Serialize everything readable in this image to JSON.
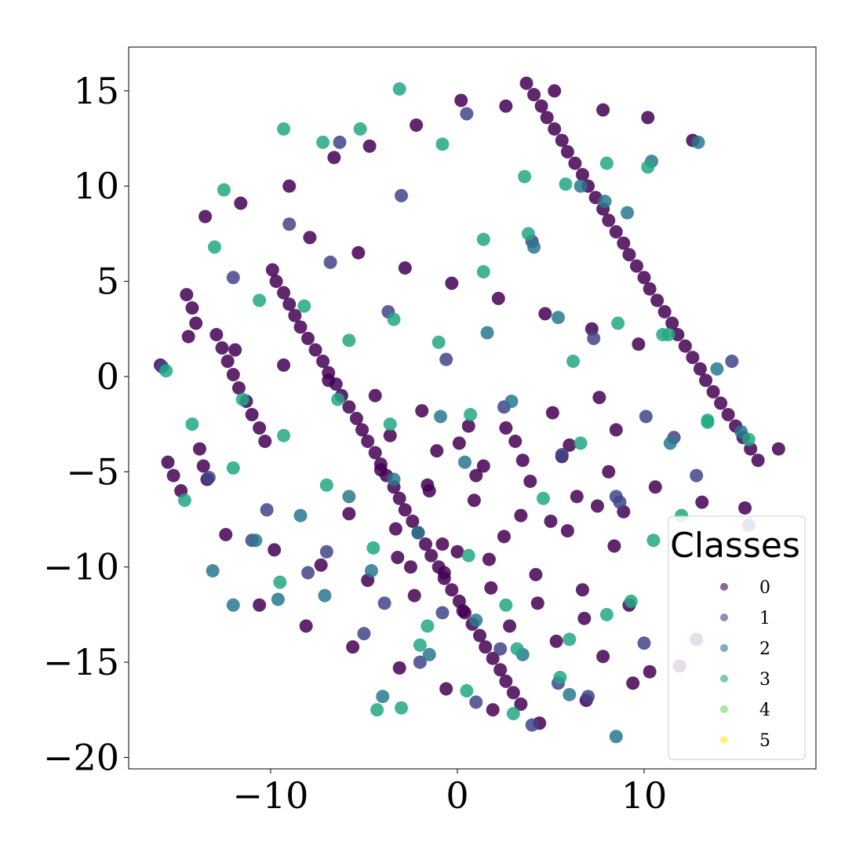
{
  "chart_data": {
    "type": "scatter",
    "title": "",
    "xlabel": "",
    "ylabel": "",
    "xlim": [
      -17.6,
      19.2
    ],
    "ylim": [
      -20.6,
      17.3
    ],
    "xticks": [
      -10,
      0,
      10
    ],
    "xtick_labels": [
      "−10",
      "0",
      "10"
    ],
    "yticks": [
      -20,
      -15,
      -10,
      -5,
      0,
      5,
      10,
      15
    ],
    "ytick_labels": [
      "−20",
      "−15",
      "−10",
      "−5",
      "0",
      "5",
      "10",
      "15"
    ],
    "grid": false,
    "legend": {
      "title": "Classes",
      "placement": "lower-right",
      "entries": [
        "0",
        "1",
        "2",
        "3",
        "4",
        "5"
      ]
    },
    "colors": [
      "#440154",
      "#414487",
      "#2a788e",
      "#22a884",
      "#7ad151",
      "#fde725"
    ],
    "series": [
      {
        "name": "0",
        "x": [
          -15.9,
          -15.5,
          -15.2,
          -14.8,
          -14.5,
          -14.2,
          -14.0,
          -13.8,
          -13.6,
          -13.4,
          -12.9,
          -12.6,
          -12.3,
          -12.0,
          -11.7,
          -11.3,
          -11.0,
          -10.6,
          -10.3,
          -9.9,
          -9.7,
          -9.3,
          -9.0,
          -8.7,
          -8.4,
          -8.0,
          -7.6,
          -7.2,
          -6.9,
          -6.5,
          -6.2,
          -5.8,
          -5.4,
          -5.1,
          -4.8,
          -4.4,
          -4.1,
          -3.8,
          -3.4,
          -3.1,
          -2.8,
          -2.4,
          -2.1,
          -1.7,
          -1.4,
          -1.0,
          -0.7,
          -0.3,
          0.1,
          0.4,
          0.8,
          1.2,
          1.5,
          1.9,
          2.3,
          2.6,
          3.0,
          3.4,
          3.7,
          4.1,
          4.5,
          4.8,
          5.2,
          5.6,
          5.9,
          6.3,
          6.7,
          7.0,
          7.4,
          7.8,
          8.1,
          8.5,
          8.9,
          9.2,
          9.6,
          10.0,
          10.3,
          10.7,
          11.1,
          11.5,
          11.8,
          12.2,
          12.6,
          13.0,
          13.3,
          13.7,
          14.1,
          14.5,
          14.9,
          15.3,
          15.7,
          16.1,
          17.2,
          -13.5,
          -11.6,
          -9.0,
          -6.6,
          -4.7,
          -2.2,
          0.2,
          2.6,
          5.2,
          7.8,
          10.2,
          12.6,
          -14.4,
          -11.9,
          -9.3,
          -6.9,
          -4.4,
          -1.9,
          0.6,
          3.1,
          5.6,
          8.1,
          10.6,
          13.1,
          15.4,
          -12.4,
          -9.8,
          -7.3,
          -4.8,
          -2.3,
          0.3,
          2.8,
          5.3,
          7.8,
          10.3,
          12.8,
          -10.6,
          -8.1,
          -5.6,
          -3.1,
          -0.6,
          1.9,
          4.4,
          6.9,
          9.4,
          11.9,
          -7.9,
          -5.3,
          -2.8,
          -0.3,
          2.2,
          4.7,
          7.2,
          9.7,
          -5.8,
          -3.3,
          -0.8,
          1.7,
          4.2,
          6.7,
          9.2,
          -4.1,
          -1.6,
          0.9,
          3.4,
          5.9,
          8.4,
          -3.6,
          -1.1,
          1.4,
          3.9,
          6.4,
          8.9,
          -3.2,
          -0.7,
          1.8,
          4.3,
          6.8,
          0.1,
          2.6,
          5.1,
          7.6,
          -1.5,
          1.0,
          3.5,
          6.0,
          8.5,
          -2.5,
          0.0,
          2.5,
          5.0,
          7.5
        ],
        "y": [
          0.6,
          -4.5,
          -5.2,
          -6.0,
          4.3,
          3.6,
          2.8,
          -3.8,
          -4.7,
          -5.4,
          2.2,
          1.5,
          0.8,
          0.1,
          -0.6,
          -1.3,
          -2.0,
          -2.7,
          -3.4,
          5.6,
          5.0,
          4.4,
          3.8,
          3.2,
          2.6,
          2.0,
          1.4,
          0.8,
          0.2,
          -0.4,
          -1.0,
          -1.6,
          -2.2,
          -2.8,
          -3.4,
          -4.0,
          -4.6,
          -5.2,
          -5.8,
          -6.4,
          -7.0,
          -7.6,
          -8.2,
          -8.8,
          -9.4,
          -10.0,
          -10.6,
          -11.2,
          -11.8,
          -12.4,
          -13.0,
          -13.6,
          -14.2,
          -14.8,
          -15.4,
          -16.0,
          -16.6,
          -17.2,
          15.4,
          14.8,
          14.2,
          13.6,
          13.0,
          12.4,
          11.8,
          11.2,
          10.6,
          10.0,
          9.4,
          8.8,
          8.2,
          7.6,
          7.0,
          6.4,
          5.8,
          5.2,
          4.6,
          4.0,
          3.4,
          2.8,
          2.2,
          1.6,
          1.0,
          0.4,
          -0.2,
          -0.8,
          -1.4,
          -2.0,
          -2.6,
          -3.2,
          -3.8,
          -4.4,
          -3.8,
          8.4,
          9.1,
          10.0,
          11.5,
          12.1,
          13.2,
          14.5,
          14.2,
          15.0,
          14.0,
          13.6,
          12.4,
          2.1,
          1.4,
          0.6,
          -0.2,
          -1.0,
          -1.8,
          -2.6,
          -3.4,
          -4.2,
          -5.0,
          -5.8,
          -6.6,
          -6.9,
          -8.3,
          -9.1,
          -9.9,
          -10.7,
          -11.5,
          -12.3,
          -13.1,
          -13.9,
          -14.7,
          -15.5,
          -13.8,
          -12.0,
          -13.1,
          -14.2,
          -15.3,
          -16.4,
          -17.5,
          -18.2,
          -17.0,
          -16.1,
          -15.2,
          7.3,
          6.5,
          5.7,
          4.9,
          4.1,
          3.3,
          2.5,
          1.7,
          -7.2,
          -8.0,
          -8.8,
          -9.6,
          -10.4,
          -11.2,
          -12.0,
          -4.9,
          -5.7,
          -6.5,
          -7.3,
          -8.1,
          -8.9,
          -3.1,
          -3.9,
          -4.7,
          -5.5,
          -6.3,
          -7.1,
          -9.5,
          -10.3,
          -11.1,
          -11.9,
          -12.7,
          -3.5,
          -2.7,
          -1.9,
          -1.1,
          -6.0,
          -5.2,
          -4.4,
          -3.6,
          -2.8,
          -10.0,
          -9.2,
          -8.4,
          -7.6,
          -6.8
        ]
      },
      {
        "name": "1",
        "x": [
          -15.8,
          -12.0,
          -9.0,
          -6.3,
          -3.0,
          0.5,
          4.0,
          7.3,
          10.1,
          12.8,
          15.6,
          -13.3,
          -10.2,
          -7.0,
          -3.9,
          -0.8,
          2.3,
          5.4,
          8.5,
          11.6,
          14.7,
          -11.0,
          -8.0,
          -5.0,
          -2.0,
          1.0,
          4.0,
          7.0,
          10.0,
          -6.8,
          -3.7,
          -0.6,
          2.5,
          5.6,
          8.7
        ],
        "y": [
          0.5,
          5.2,
          8.0,
          12.3,
          9.5,
          13.8,
          7.1,
          2.0,
          -2.1,
          -5.2,
          -7.8,
          -5.3,
          -7.0,
          -9.2,
          -11.9,
          -12.4,
          -14.3,
          -16.1,
          -6.3,
          -3.2,
          0.8,
          -8.6,
          -10.3,
          -13.5,
          -15.0,
          -17.1,
          -18.3,
          -16.8,
          -14.0,
          6.0,
          3.4,
          0.9,
          -1.6,
          -4.1,
          -6.6
        ]
      },
      {
        "name": "2",
        "x": [
          -13.1,
          -10.8,
          -8.4,
          -5.8,
          -3.4,
          -0.9,
          1.6,
          4.1,
          6.6,
          9.1,
          11.4,
          13.9,
          -12.0,
          -9.6,
          -7.1,
          -4.6,
          -2.1,
          0.4,
          2.9,
          5.4,
          7.9,
          10.4,
          12.9,
          15.2,
          -4.0,
          -1.5,
          1.0,
          3.5,
          6.0,
          8.5
        ],
        "y": [
          -10.2,
          -8.6,
          -7.3,
          -6.3,
          -5.4,
          -2.1,
          2.3,
          6.8,
          10.0,
          8.6,
          -3.5,
          0.4,
          -12.0,
          -11.7,
          -11.5,
          -10.2,
          -8.2,
          -4.5,
          -1.3,
          3.1,
          9.2,
          11.3,
          12.3,
          -2.9,
          -16.8,
          -14.6,
          -12.8,
          -14.6,
          -16.7,
          -18.9
        ]
      },
      {
        "name": "3",
        "x": [
          -15.6,
          -14.2,
          -12.5,
          -11.5,
          -9.3,
          -7.2,
          -5.2,
          -3.1,
          -0.8,
          1.4,
          3.6,
          5.8,
          8.0,
          10.2,
          11.3,
          13.4,
          15.6,
          -14.6,
          -12.0,
          -9.5,
          -7.0,
          -4.5,
          -2.0,
          0.5,
          3.0,
          5.5,
          8.0,
          10.5,
          -13.0,
          -10.6,
          -8.2,
          -5.8,
          -3.4,
          -1.0,
          1.4,
          3.8,
          6.2,
          8.6,
          11.0,
          13.4,
          -4.3,
          -3.0,
          -1.6,
          0.6,
          2.6,
          4.6,
          6.6,
          -9.3,
          -6.4,
          -3.6,
          0.7,
          3.2,
          6.0,
          9.3,
          12.0
        ],
        "y": [
          0.3,
          -2.5,
          9.8,
          -1.2,
          13.0,
          12.3,
          13.0,
          15.1,
          12.2,
          7.2,
          10.5,
          10.1,
          11.2,
          11.0,
          2.2,
          -2.3,
          -3.3,
          -6.5,
          -4.8,
          -10.8,
          -5.7,
          -9.0,
          -14.1,
          -16.5,
          -17.7,
          -15.8,
          -12.5,
          -8.6,
          6.8,
          4.0,
          3.7,
          1.9,
          3.0,
          1.8,
          5.5,
          7.5,
          0.8,
          2.8,
          2.2,
          -2.4,
          -17.5,
          -17.4,
          -13.1,
          -9.4,
          -12.0,
          -6.4,
          -3.5,
          -3.1,
          -1.2,
          -2.5,
          -2.0,
          -14.3,
          -13.8,
          -11.8,
          -7.3
        ]
      },
      {
        "name": "4",
        "x": [],
        "y": []
      },
      {
        "name": "5",
        "x": [],
        "y": []
      }
    ]
  }
}
